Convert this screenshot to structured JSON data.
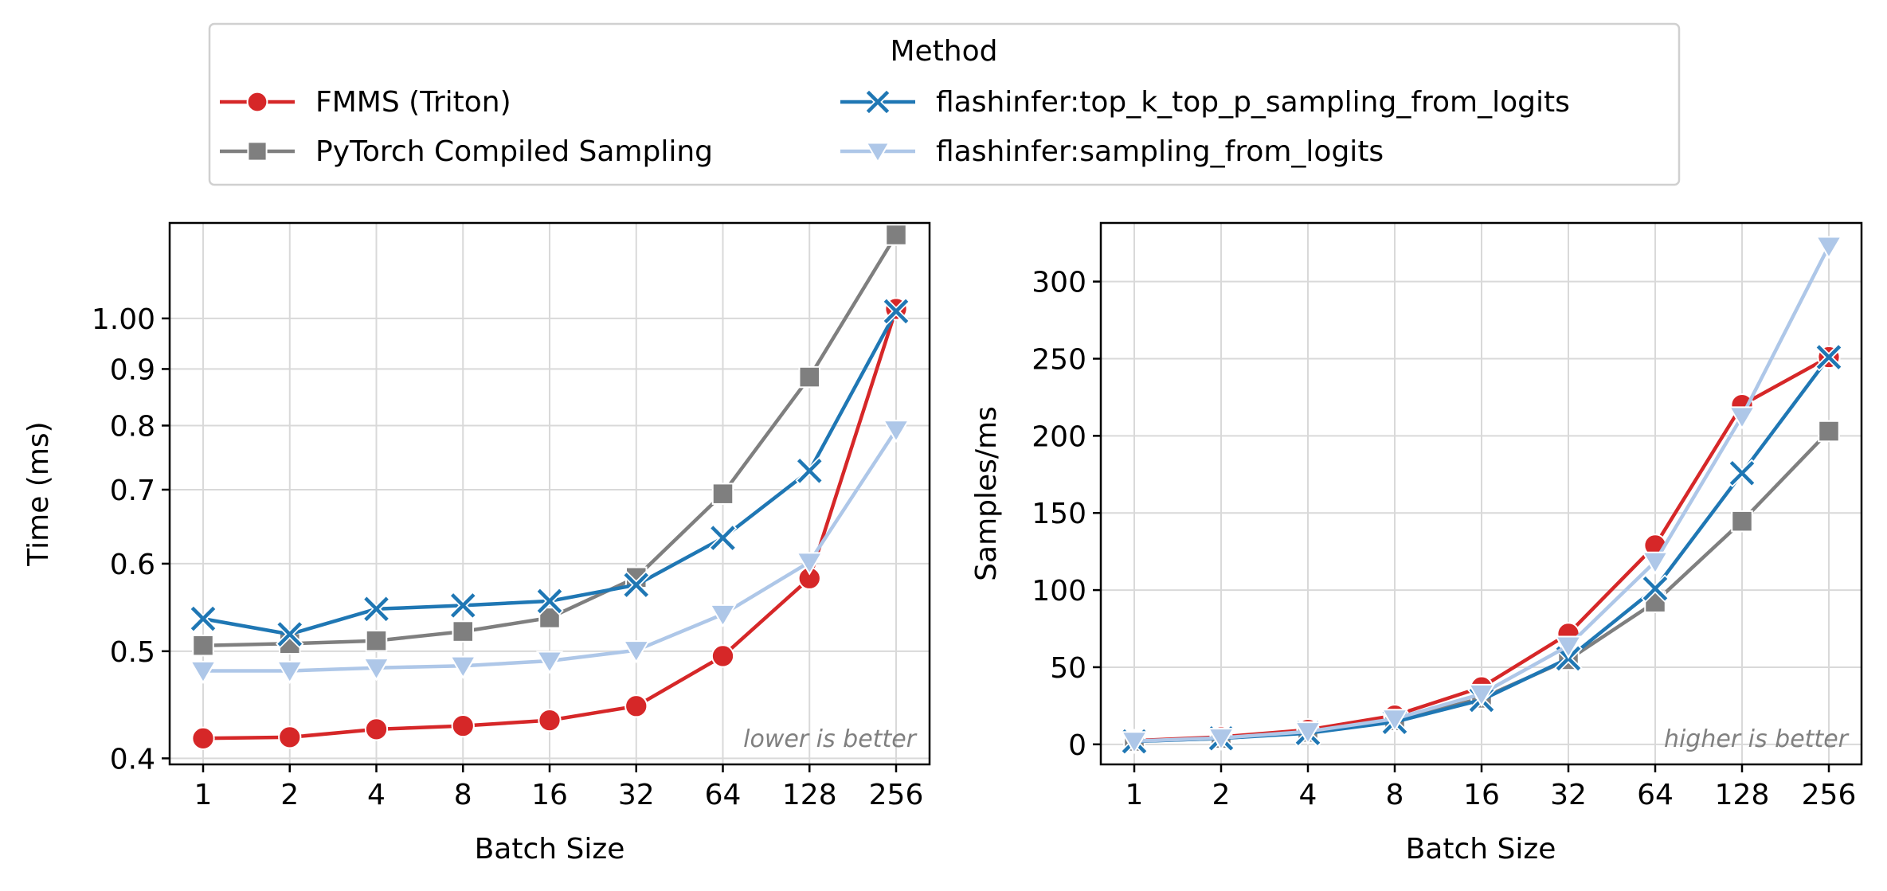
{
  "legend": {
    "title": "Method",
    "placement": "top-center",
    "entries": [
      {
        "label": "FMMS (Triton)",
        "color": "#d62728",
        "marker": "circle"
      },
      {
        "label": "PyTorch Compiled Sampling",
        "color": "#7f7f7f",
        "marker": "square"
      },
      {
        "label": "flashinfer:top_k_top_p_sampling_from_logits",
        "color": "#1f77b4",
        "marker": "x"
      },
      {
        "label": "flashinfer:sampling_from_logits",
        "color": "#aec7e8",
        "marker": "triangle-down"
      }
    ]
  },
  "chart_data": [
    {
      "type": "line",
      "xlabel": "Batch Size",
      "ylabel": "Time (ms)",
      "yscale": "log",
      "ylim": [
        0.395,
        1.22
      ],
      "yticks": [
        "0.4",
        "0.5",
        "0.6",
        "0.7",
        "0.8",
        "0.9",
        "1.00"
      ],
      "ytick_values": [
        0.4,
        0.5,
        0.6,
        0.7,
        0.8,
        0.9,
        1.0
      ],
      "categories": [
        "1",
        "2",
        "4",
        "8",
        "16",
        "32",
        "64",
        "128",
        "256"
      ],
      "annotation": "lower is better",
      "grid": true,
      "series": [
        {
          "name": "FMMS (Triton)",
          "values": [
            0.417,
            0.418,
            0.425,
            0.428,
            0.433,
            0.446,
            0.495,
            0.582,
            1.02
          ]
        },
        {
          "name": "PyTorch Compiled Sampling",
          "values": [
            0.506,
            0.508,
            0.511,
            0.521,
            0.536,
            0.583,
            0.694,
            0.885,
            1.19
          ]
        },
        {
          "name": "flashinfer:top_k_top_p_sampling_from_logits",
          "values": [
            0.535,
            0.518,
            0.546,
            0.55,
            0.555,
            0.574,
            0.633,
            0.728,
            1.015
          ]
        },
        {
          "name": "flashinfer:sampling_from_logits",
          "values": [
            0.48,
            0.48,
            0.483,
            0.485,
            0.49,
            0.501,
            0.54,
            0.602,
            0.793
          ]
        }
      ]
    },
    {
      "type": "line",
      "xlabel": "Batch Size",
      "ylabel": "Samples/ms",
      "yscale": "linear",
      "ylim": [
        -13,
        338
      ],
      "yticks": [
        "0",
        "50",
        "100",
        "150",
        "200",
        "250",
        "300"
      ],
      "ytick_values": [
        0,
        50,
        100,
        150,
        200,
        250,
        300
      ],
      "categories": [
        "1",
        "2",
        "4",
        "8",
        "16",
        "32",
        "64",
        "128",
        "256"
      ],
      "annotation": "higher is better",
      "grid": true,
      "series": [
        {
          "name": "FMMS (Triton)",
          "values": [
            2.4,
            4.8,
            9.4,
            18.7,
            37,
            71.7,
            129,
            220,
            251
          ]
        },
        {
          "name": "PyTorch Compiled Sampling",
          "values": [
            2.0,
            3.9,
            7.8,
            15.4,
            29.9,
            54.9,
            92.2,
            144.6,
            203
          ]
        },
        {
          "name": "flashinfer:top_k_top_p_sampling_from_logits",
          "values": [
            1.9,
            3.9,
            7.3,
            14.5,
            28.8,
            55.7,
            101,
            175.8,
            251
          ]
        },
        {
          "name": "flashinfer:sampling_from_logits",
          "values": [
            2.1,
            4.2,
            8.3,
            16.5,
            32.7,
            63.9,
            118.5,
            212.6,
            323
          ]
        }
      ]
    }
  ]
}
